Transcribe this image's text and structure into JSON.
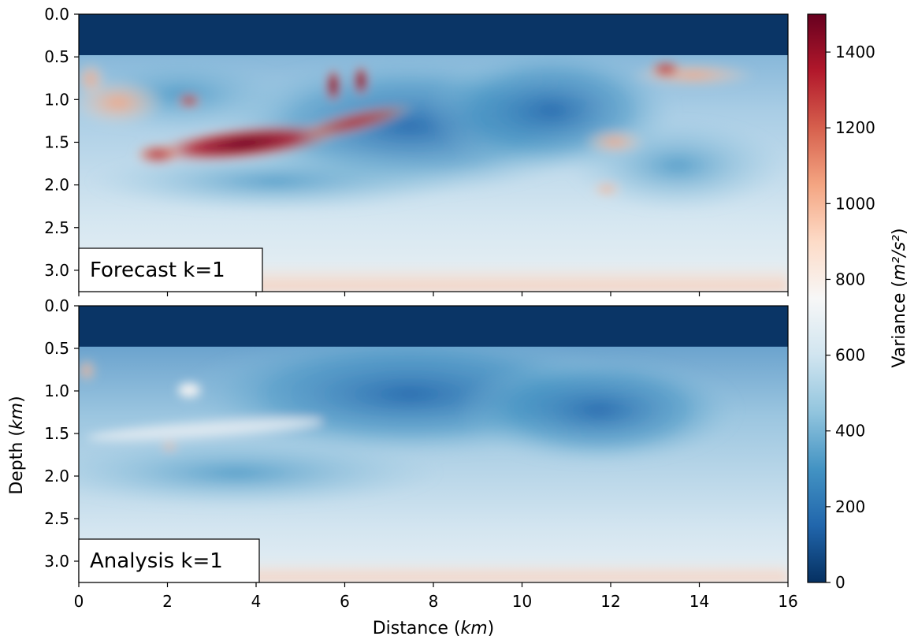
{
  "chart_data": {
    "type": "heatmap",
    "xlabel": "Distance (km)",
    "ylabel": "Depth (km)",
    "xlim": [
      0,
      16
    ],
    "ylim": [
      3.25,
      0
    ],
    "x_ticks": [
      "0",
      "2",
      "4",
      "6",
      "8",
      "10",
      "12",
      "14",
      "16"
    ],
    "y_ticks": [
      "0.0",
      "0.5",
      "1.0",
      "1.5",
      "2.0",
      "2.5",
      "3.0"
    ],
    "colorbar": {
      "label": "Variance (m²/s²)",
      "range": [
        0,
        1500
      ],
      "ticks": [
        "0",
        "200",
        "400",
        "600",
        "800",
        "1000",
        "1200",
        "1400"
      ],
      "colormap": "RdBu_r",
      "colors": [
        "#053061",
        "#2166ac",
        "#4393c3",
        "#92c5de",
        "#d1e5f0",
        "#f7f7f7",
        "#fddbc7",
        "#f4a582",
        "#d6604d",
        "#b2182b",
        "#67001f"
      ]
    },
    "panels": [
      {
        "label": "Forecast k=1",
        "water_layer_depth": 0.48,
        "water_variance": 0,
        "background_variance": 600,
        "features": [
          {
            "kind": "high_variance_band",
            "x_range": [
              2.0,
              5.3
            ],
            "depth": 1.6,
            "peak_variance": 1500
          },
          {
            "kind": "moderate_band",
            "x_range": [
              5.3,
              8.0
            ],
            "depth": 1.2,
            "peak_variance": 1100
          },
          {
            "kind": "blob",
            "x": 5.8,
            "depth": 0.85,
            "peak_variance": 1450
          },
          {
            "kind": "blob",
            "x": 6.4,
            "depth": 0.78,
            "peak_variance": 1350
          },
          {
            "kind": "blob",
            "x": 13.4,
            "depth": 0.65,
            "peak_variance": 1250
          },
          {
            "kind": "blob",
            "x": 2.5,
            "depth": 1.0,
            "peak_variance": 1100
          },
          {
            "kind": "low_variance_zone",
            "x_range": [
              6.5,
              12.5
            ],
            "depth": 0.8,
            "variance": 300
          }
        ]
      },
      {
        "label": "Analysis k=1",
        "water_layer_depth": 0.48,
        "water_variance": 0,
        "background_variance": 550,
        "features": [
          {
            "kind": "moderate_band",
            "x_range": [
              0.5,
              5.5
            ],
            "depth": 1.5,
            "peak_variance": 800
          },
          {
            "kind": "low_variance_zone",
            "x_range": [
              4.0,
              13.0
            ],
            "depth": 1.0,
            "variance": 250
          }
        ]
      }
    ]
  }
}
